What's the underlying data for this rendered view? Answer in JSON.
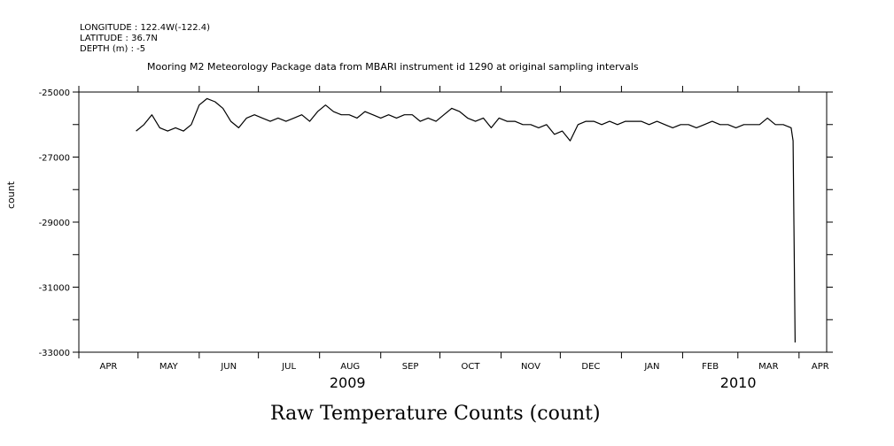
{
  "header": {
    "longitude": "LONGITUDE : 122.4W(-122.4)",
    "latitude": "LATITUDE : 36.7N",
    "depth": "DEPTH (m) : -5"
  },
  "subtitle": "Mooring M2 Meteorology Package data from MBARI instrument id 1290 at original sampling intervals",
  "chart_data": {
    "type": "line",
    "title": "Raw Temperature Counts (count)",
    "ylabel": "count",
    "xlabel": "",
    "ylim": [
      -33000,
      -25000
    ],
    "yticks": [
      {
        "value": -25000,
        "label": "-25000"
      },
      {
        "value": -27000,
        "label": "-27000"
      },
      {
        "value": -29000,
        "label": "-29000"
      },
      {
        "value": -31000,
        "label": "-31000"
      },
      {
        "value": -33000,
        "label": "-33000"
      }
    ],
    "xlim": [
      "2009-04-01",
      "2010-04-15"
    ],
    "xticks": [
      "2009-04-01",
      "2009-05-01",
      "2009-06-01",
      "2009-07-01",
      "2009-08-01",
      "2009-09-01",
      "2009-10-01",
      "2009-11-01",
      "2009-12-01",
      "2010-01-01",
      "2010-02-01",
      "2010-03-01",
      "2010-04-01"
    ],
    "month_labels": [
      "APR",
      "MAY",
      "JUN",
      "JUL",
      "AUG",
      "SEP",
      "OCT",
      "NOV",
      "DEC",
      "JAN",
      "FEB",
      "MAR",
      "APR"
    ],
    "years": [
      {
        "label": "2009",
        "anchor": "2009-08-15"
      },
      {
        "label": "2010",
        "anchor": "2010-03-01"
      }
    ],
    "series": [
      {
        "x": [
          "2009-04-30",
          "2009-05-04",
          "2009-05-08",
          "2009-05-12",
          "2009-05-16",
          "2009-05-20",
          "2009-05-24",
          "2009-05-28",
          "2009-06-01",
          "2009-06-05",
          "2009-06-09",
          "2009-06-13",
          "2009-06-17",
          "2009-06-21",
          "2009-06-25",
          "2009-06-29",
          "2009-07-03",
          "2009-07-07",
          "2009-07-11",
          "2009-07-15",
          "2009-07-19",
          "2009-07-23",
          "2009-07-27",
          "2009-07-31",
          "2009-08-04",
          "2009-08-08",
          "2009-08-12",
          "2009-08-16",
          "2009-08-20",
          "2009-08-24",
          "2009-08-28",
          "2009-09-01",
          "2009-09-05",
          "2009-09-09",
          "2009-09-13",
          "2009-09-17",
          "2009-09-21",
          "2009-09-25",
          "2009-09-29",
          "2009-10-03",
          "2009-10-07",
          "2009-10-11",
          "2009-10-15",
          "2009-10-19",
          "2009-10-23",
          "2009-10-27",
          "2009-10-31",
          "2009-11-04",
          "2009-11-08",
          "2009-11-12",
          "2009-11-16",
          "2009-11-20",
          "2009-11-24",
          "2009-11-28",
          "2009-12-02",
          "2009-12-06",
          "2009-12-10",
          "2009-12-14",
          "2009-12-18",
          "2009-12-22",
          "2009-12-26",
          "2009-12-30",
          "2010-01-03",
          "2010-01-07",
          "2010-01-11",
          "2010-01-15",
          "2010-01-19",
          "2010-01-23",
          "2010-01-27",
          "2010-01-31",
          "2010-02-04",
          "2010-02-08",
          "2010-02-12",
          "2010-02-16",
          "2010-02-20",
          "2010-02-24",
          "2010-02-28",
          "2010-03-04",
          "2010-03-08",
          "2010-03-12",
          "2010-03-16",
          "2010-03-20",
          "2010-03-24",
          "2010-03-28",
          "2010-03-29",
          "2010-03-30"
        ],
        "values": [
          -26200,
          -26000,
          -25700,
          -26100,
          -26200,
          -26100,
          -26200,
          -26000,
          -25400,
          -25200,
          -25300,
          -25500,
          -25900,
          -26100,
          -25800,
          -25700,
          -25800,
          -25900,
          -25800,
          -25900,
          -25800,
          -25700,
          -25900,
          -25600,
          -25400,
          -25600,
          -25700,
          -25700,
          -25800,
          -25600,
          -25700,
          -25800,
          -25700,
          -25800,
          -25700,
          -25700,
          -25900,
          -25800,
          -25900,
          -25700,
          -25500,
          -25600,
          -25800,
          -25900,
          -25800,
          -26100,
          -25800,
          -25900,
          -25900,
          -26000,
          -26000,
          -26100,
          -26000,
          -26300,
          -26200,
          -26500,
          -26000,
          -25900,
          -25900,
          -26000,
          -25900,
          -26000,
          -25900,
          -25900,
          -25900,
          -26000,
          -25900,
          -26000,
          -26100,
          -26000,
          -26000,
          -26100,
          -26000,
          -25900,
          -26000,
          -26000,
          -26100,
          -26000,
          -26000,
          -26000,
          -25800,
          -26000,
          -26000,
          -26100,
          -26500,
          -32700
        ]
      }
    ]
  }
}
